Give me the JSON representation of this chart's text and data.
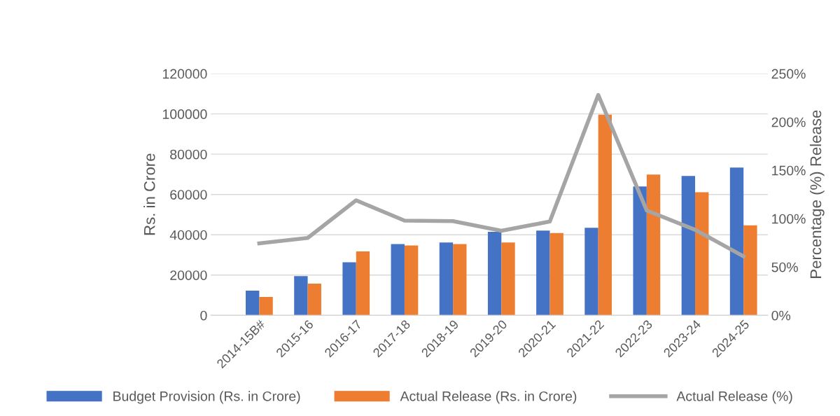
{
  "chart_data": {
    "type": "bar",
    "categories": [
      "2014-15B#",
      "2015-16",
      "2016-17",
      "2017-18",
      "2018-19",
      "2019-20",
      "2020-21",
      "2021-22",
      "2022-23",
      "2023-24",
      "2024-25"
    ],
    "series": [
      {
        "name": "Budget Provision (Rs. in Crore)",
        "color": "#4472c4",
        "values": [
          12300,
          19500,
          26300,
          35400,
          36200,
          41500,
          42100,
          43500,
          64000,
          69200,
          73400
        ]
      },
      {
        "name": "Actual Release (Rs. in Crore)",
        "color": "#ed7d31",
        "values": [
          9100,
          15700,
          31700,
          34700,
          35400,
          36200,
          40900,
          99600,
          69900,
          61100,
          44700
        ]
      },
      {
        "name": "Actual Release (%)",
        "color": "#a5a5a5",
        "type": "line",
        "axis": "y2",
        "values": [
          74.5,
          80,
          119,
          98,
          97.5,
          87.5,
          97,
          228,
          108.5,
          88.5,
          61
        ]
      }
    ],
    "ylabel": "Rs. in Crore",
    "y2label": "Percentage (%) Release",
    "ylim": [
      0,
      120000
    ],
    "yticks": [
      0,
      20000,
      40000,
      60000,
      80000,
      100000,
      120000
    ],
    "y2lim": [
      0,
      250
    ],
    "y2ticks": [
      {
        "value": 0,
        "label": "0%"
      },
      {
        "value": 50,
        "label": "50%"
      },
      {
        "value": 100,
        "label": "100%"
      },
      {
        "value": 150,
        "label": "150%"
      },
      {
        "value": 200,
        "label": "200%"
      },
      {
        "value": 250,
        "label": "250%"
      }
    ],
    "grid": "y",
    "legend": "bottom",
    "marker": "none",
    "line_style": "solid"
  }
}
